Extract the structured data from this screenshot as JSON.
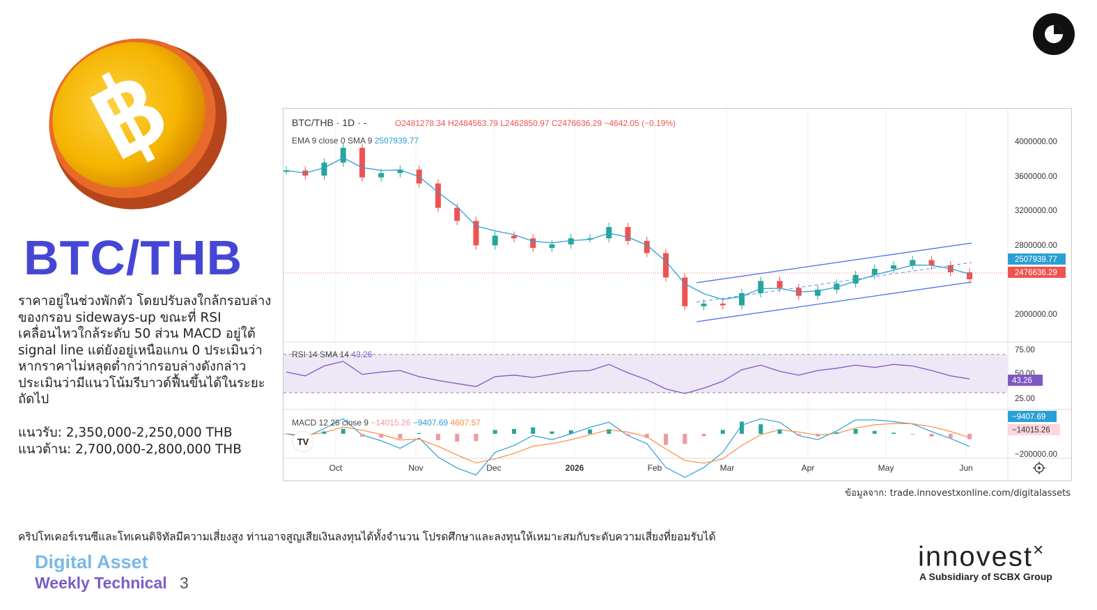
{
  "title": "BTC/THB",
  "description": "ราคาอยู่ในช่วงพักตัว โดยปรับลงใกล้กรอบล่างของกรอบ sideways-up ขณะที่ RSI เคลื่อนไหวใกล้ระดับ 50 ส่วน MACD อยู่ใต้ signal line แต่ยังอยู่เหนือแกน 0 ประเมินว่าหากราคาไม่หลุดต่ำกว่ากรอบล่างดังกล่าว ประเมินว่ามีแนวโน้มรีบาวด์ฟื้นขึ้นได้ในระยะถัดไป",
  "support": "แนวรับ: 2,350,000-2,250,000 THB",
  "resistance": "แนวต้าน: 2,700,000-2,800,000 THB",
  "source": "ข้อมูลจาก: trade.innovestxonline.com/digitalassets",
  "disclaimer": "คริปโทเคอร์เรนซีและโทเคนดิจิทัลมีความเสี่ยงสูง ท่านอาจสูญเสียเงินลงทุนได้ทั้งจำนวน  โปรดศึกษาและลงทุนให้เหมาะสมกับระดับความเสี่ยงที่ยอมรับได้",
  "series_title": "Digital Asset",
  "series_subtitle": "Weekly Technical",
  "page_number": "3",
  "brand": {
    "name": "innovest",
    "mark": "×",
    "tagline": "A Subsidiary of SCBX Group"
  },
  "colors": {
    "title": "#4646d6",
    "up": "#26a69a",
    "down": "#ef5350",
    "ema": "#2a9fd6",
    "rsi": "#7e57c2",
    "macd": "#2962ff",
    "signal": "#ff6d00"
  },
  "chart_data": {
    "type": "line",
    "symbol": "BTC/THB",
    "interval": "1D",
    "ohlc_header": {
      "open": "O2481278.34",
      "high": "H2484563.79",
      "low": "L2462850.97",
      "close": "C2476636.29",
      "change": "−4642.05 (−0.19%)"
    },
    "ema_label": "EMA 9 close 0 SMA 9",
    "ema_value": "2507939.77",
    "rsi_label": "RSI 14 SMA 14",
    "rsi_value": "43.26",
    "macd_label": "MACD 12 26 close 9",
    "macd_values": [
      "−14015.26",
      "−9407.69",
      "4607.57"
    ],
    "price_axis": [
      "4000000.00",
      "3600000.00",
      "3200000.00",
      "2800000.00",
      "2000000.00"
    ],
    "price_ylim": [
      1800000,
      4200000
    ],
    "rsi_axis": [
      "75.00",
      "50.00",
      "25.00"
    ],
    "macd_axis": [
      "−200000.00"
    ],
    "x_labels": [
      "Oct",
      "Nov",
      "Dec",
      "2026",
      "Feb",
      "Mar",
      "Apr",
      "May",
      "Jun"
    ],
    "price_tags": [
      {
        "value": "2507939.77",
        "color": "#2a9fd6"
      },
      {
        "value": "2476636.29",
        "color": "#ef5350"
      }
    ],
    "rsi_tag": "43.26",
    "macd_tags": [
      {
        "value": "−9407.69",
        "color": "#2a9fd6"
      },
      {
        "value": "−14015.26",
        "color": "#ffd6dc"
      }
    ],
    "series": [
      {
        "name": "BTC/THB",
        "x": [
          "Sep 15",
          "Sep 22",
          "Sep 29",
          "Oct 6",
          "Oct 13",
          "Oct 20",
          "Oct 27",
          "Nov 3",
          "Nov 10",
          "Nov 17",
          "Nov 24",
          "Dec 1",
          "Dec 8",
          "Dec 15",
          "Dec 22",
          "Dec 29",
          "Jan 5",
          "Jan 12",
          "Jan 19",
          "Jan 26",
          "Feb 2",
          "Feb 9",
          "Feb 16",
          "Feb 23",
          "Mar 2",
          "Mar 9",
          "Mar 16",
          "Mar 23",
          "Mar 30",
          "Apr 6",
          "Apr 13",
          "Apr 20",
          "Apr 27",
          "May 4",
          "May 11",
          "May 18",
          "May 25"
        ],
        "values": [
          3730000,
          3670000,
          3820000,
          3990000,
          3650000,
          3700000,
          3740000,
          3580000,
          3300000,
          3150000,
          2870000,
          2980000,
          2950000,
          2840000,
          2880000,
          2950000,
          2950000,
          3080000,
          2920000,
          2780000,
          2500000,
          2170000,
          2200000,
          2180000,
          2320000,
          2460000,
          2380000,
          2290000,
          2360000,
          2430000,
          2530000,
          2600000,
          2640000,
          2700000,
          2640000,
          2560000,
          2480000
        ]
      }
    ],
    "rsi": [
      52,
      47,
      60,
      66,
      49,
      52,
      54,
      46,
      41,
      37,
      33,
      46,
      48,
      45,
      49,
      53,
      54,
      62,
      51,
      42,
      30,
      24,
      31,
      40,
      55,
      61,
      53,
      48,
      54,
      57,
      61,
      58,
      62,
      60,
      54,
      47,
      43
    ]
  }
}
